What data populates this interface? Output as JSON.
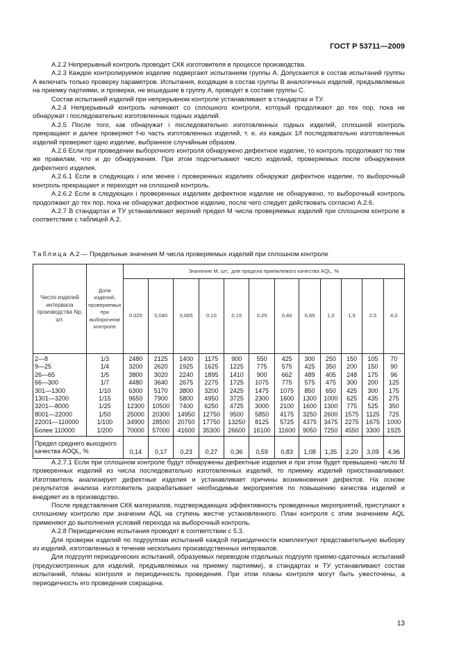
{
  "header": "ГОСТ Р 53711—2009",
  "paragraphs1": [
    "А.2.2 Непрерывный контроль проводит СКК изготовителя в процессе производства.",
    "А.2.3 Каждое контролируемое изделие подвергают испытаниям группы А. Допускается в состав испытаний группы А включать только проверку параметров. Испытания, входящие в состав группы В аналогичных изделий, предъявляемых на приемку партиями, и проверки, не вошедшие в группу А, проводят в составе группы С.",
    "Состав испытаний изделий при непрерывном контроле устанавливают в стандартах и ТУ.",
    "А.2.4 Непрерывный контроль начинают со сплошного контроля, который продолжают до тех пор, пока не обнаружат i последовательно изготовленных годных изделий.",
    "А.2.5 После того, как обнаружат i последовательно изготовленных годных изделий, сплошной контроль прекращают и далее проверяют f-ю часть изготовленных изделий, т. е. из каждых 1/f последовательно изготовленных изделий проверяют одно изделие, выбранное случайным образом.",
    "А.2.6 Если при проведении выборочного контроля обнаружено дефектное изделие, то контроль продолжают по тем же правилам, что и до обнаружения. При этом подсчитывают число изделий, проверяемых после обнаружения дефектного изделия.",
    "А.2.6.1 Если в следующих i или менее i проверенных изделиях обнаружат дефектное изделие, то выборочный контроль прекращают и переходят на сплошной контроль.",
    "А.2.6.2 Если в следующих i проверенных изделиях дефектное изделие не обнаружено, то выборочный контроль продолжают до тех пор, пока не обнаружат дефектное изделие, после чего следует действовать согласно А.2.6.",
    "А.2.7 В стандартах и ТУ устанавливают верхний предел М числа проверяемых изделий при сплошном контроле в соответствии с таблицей А.2."
  ],
  "table": {
    "caption_prefix": "Таблица",
    "caption": " А.2 — Предельные значения М числа проверяемых изделий при сплошном контроле",
    "col1_header": "Число изделий интервала производства Nр, шт.",
    "col2_header": "Доля изделий, проверяемых при выборочном контроле",
    "group_header": "Значение М, шт., для предела приемлемого качества AQL, %",
    "aql": [
      "0.025",
      "0,040",
      "0,065",
      "0,10",
      "0,15",
      "0,25",
      "0,40",
      "0,65",
      "1,0",
      "1,5",
      "2,5",
      "4,0"
    ],
    "rows": [
      {
        "range": "2—8",
        "f": "1/3",
        "v": [
          "2480",
          "2125",
          "1400",
          "1175",
          "900",
          "550",
          "425",
          "300",
          "250",
          "150",
          "105",
          "70"
        ]
      },
      {
        "range": "9—25",
        "f": "1/4",
        "v": [
          "3200",
          "2620",
          "1925",
          "1625",
          "1225",
          "775",
          "575",
          "425",
          "350",
          "200",
          "150",
          "90"
        ]
      },
      {
        "range": "26—65",
        "f": "1/5",
        "v": [
          "3800",
          "3020",
          "2240",
          "1895",
          "1410",
          "900",
          "662",
          "489",
          "405",
          "248",
          "175",
          "96"
        ]
      },
      {
        "range": "66—300",
        "f": "1/7",
        "v": [
          "4480",
          "3640",
          "2675",
          "2275",
          "1725",
          "1075",
          "775",
          "575",
          "475",
          "300",
          "200",
          "125"
        ]
      },
      {
        "range": "301—1300",
        "f": "1/10",
        "v": [
          "6300",
          "5170",
          "3800",
          "3200",
          "2425",
          "1475",
          "1075",
          "850",
          "650",
          "425",
          "300",
          "175"
        ]
      },
      {
        "range": "1301—3200",
        "f": "1/15",
        "v": [
          "9650",
          "7900",
          "5800",
          "4950",
          "3725",
          "2300",
          "1600",
          "1300",
          "1000",
          "625",
          "435",
          "275"
        ]
      },
      {
        "range": "3201—8000",
        "f": "1/25",
        "v": [
          "12300",
          "10500",
          "7400",
          "6250",
          "4725",
          "3000",
          "2100",
          "1600",
          "1300",
          "775",
          "525",
          "350"
        ]
      },
      {
        "range": "8001—22000",
        "f": "1/50",
        "v": [
          "25000",
          "20300",
          "14950",
          "12750",
          "9500",
          "5850",
          "4175",
          "3250",
          "2600",
          "1575",
          "1125",
          "725"
        ]
      },
      {
        "range": "22001—110000",
        "f": "1/100",
        "v": [
          "34900",
          "28500",
          "20750",
          "17750",
          "13250",
          "8125",
          "5725",
          "4375",
          "3475",
          "2275",
          "1675",
          "1000"
        ]
      },
      {
        "range": "Более 110000",
        "f": "1/200",
        "v": [
          "70000",
          "57000",
          "41600",
          "35300",
          "26600",
          "16100",
          "11600",
          "9050",
          "7250",
          "4550",
          "3300",
          "1925"
        ]
      }
    ],
    "aoql_label": "Предел среднего выходного качества AOQL, %",
    "aoql": [
      "0,14",
      "0,17",
      "0,23",
      "0,27",
      "0,36",
      "0,59",
      "0,83",
      "1,08",
      "1,35",
      "2,20",
      "3,09",
      "4,96"
    ]
  },
  "paragraphs2": [
    "А.2.7.1 Если при сплошном контроле будут обнаружены дефектные изделия и при этом будет превышено число М проверенных изделий из числа последовательно изготовленных изделий, то приемку изделий приостанавливают. Изготовитель анализирует дефектные изделия и устанавливает причины возникновения дефектов. На основе результатов анализа изготовитель разрабатывает необходимые мероприятия по повышению качества изделий и внедряет их в производство.",
    "После представления СКК материалов, подтверждающих эффективность проведенных мероприятий, приступают к сплошному контролю при значении AQL на ступень жестче установленного. План контроля с этим значением AQL применяют до выполнения условий перехода на выборочный контроль.",
    "А.2.8 Периодические испытания проводят в соответствии с 5.3.",
    "Для проверки изделий по подгруппам испытаний каждой периодичности комплектуют представительную выборку из изделий, изготовленных в течение нескольких производственных интервалов.",
    "Для подгрупп периодических испытаний, образуемых переводом отдельных подгрупп приемо-сдаточных испытаний (предусмотренных для изделий, предъявляемых на приемку партиями), в стандартах и ТУ устанавливают состав испытаний, планы контроля и периодичность проведения. При этом планы контроля могут быть ужесточены, а периодичность его проведения сокращена."
  ],
  "page_number": "13"
}
